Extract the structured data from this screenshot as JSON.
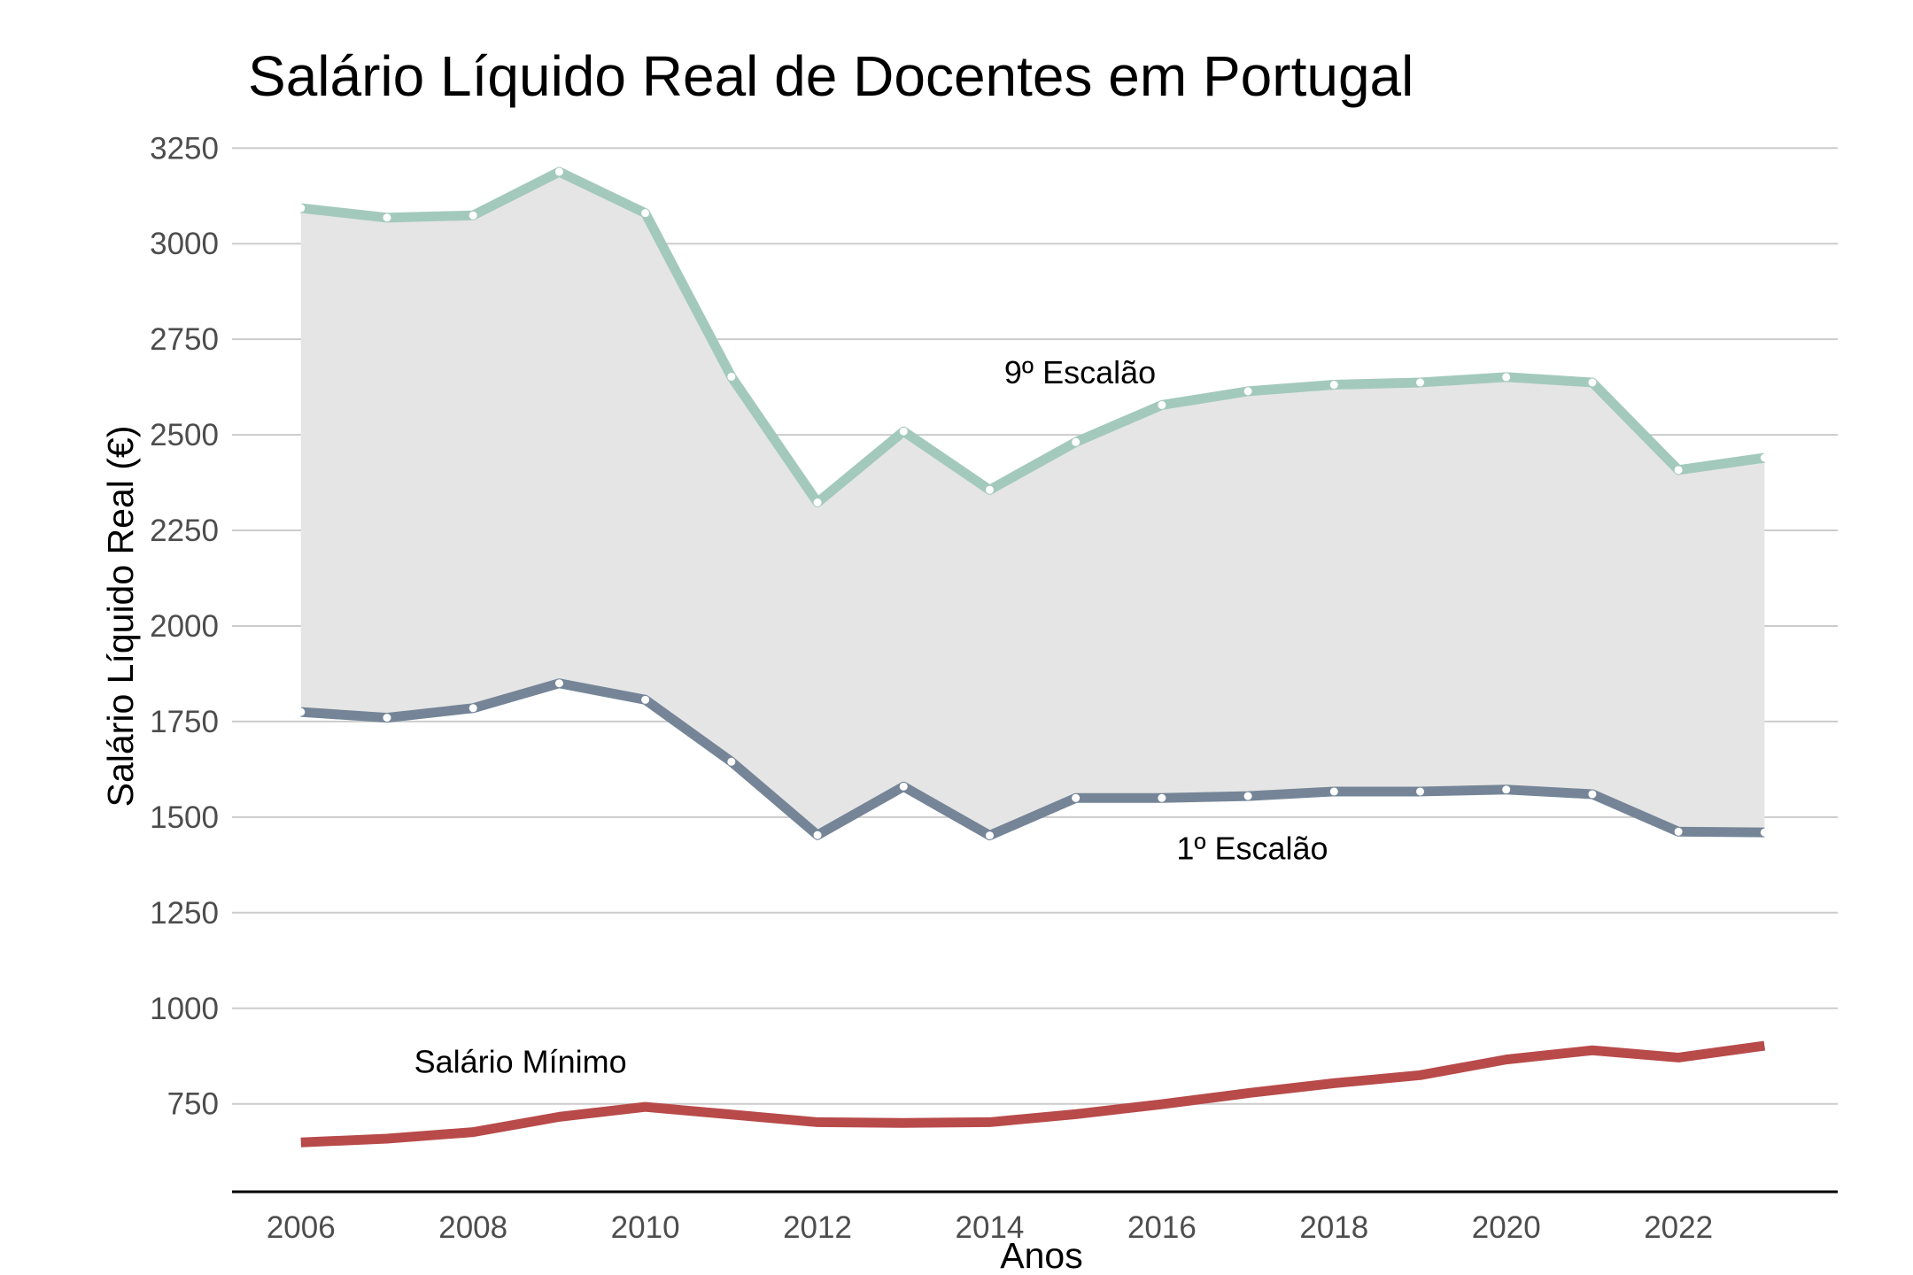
{
  "chart_data": {
    "type": "line",
    "title": "Salário Líquido Real de Docentes em Portugal",
    "xlabel": "Anos",
    "ylabel": "Salário Líquido Real (€)",
    "x": [
      2006,
      2007,
      2008,
      2009,
      2010,
      2011,
      2012,
      2013,
      2014,
      2015,
      2016,
      2017,
      2018,
      2019,
      2020,
      2021,
      2022,
      2023
    ],
    "x_ticks": [
      "2006",
      "2008",
      "2010",
      "2012",
      "2014",
      "2016",
      "2018",
      "2020",
      "2022"
    ],
    "y_ticks": [
      "750",
      "1000",
      "1250",
      "1500",
      "1750",
      "2000",
      "2250",
      "2500",
      "2750",
      "3000",
      "3250"
    ],
    "ylim": [
      520,
      3290
    ],
    "xlim": [
      2005.2,
      2023.85
    ],
    "grid": true,
    "band_fill": "#e5e5e5",
    "series": [
      {
        "name": "9º Escalão",
        "color": "#a3c9bd",
        "markers": true,
        "values": [
          3093,
          3068,
          3074,
          3188,
          3080,
          2652,
          2323,
          2509,
          2356,
          2481,
          2578,
          2614,
          2631,
          2637,
          2651,
          2637,
          2408,
          2440
        ]
      },
      {
        "name": "1º Escalão",
        "color": "#758597",
        "markers": true,
        "values": [
          1775,
          1760,
          1785,
          1850,
          1807,
          1645,
          1453,
          1580,
          1452,
          1550,
          1550,
          1555,
          1567,
          1567,
          1572,
          1560,
          1462,
          1460
        ]
      },
      {
        "name": "Salário Mínimo",
        "color": "#b84a4a",
        "markers": false,
        "values": [
          649,
          659,
          676,
          716,
          742,
          722,
          702,
          700,
          702,
          723,
          749,
          778,
          804,
          825,
          866,
          890,
          871,
          902
        ]
      }
    ],
    "annotations": [
      {
        "text": "9º Escalão",
        "x": 2015.05,
        "y": 2635
      },
      {
        "text": "1º Escalão",
        "x": 2017.05,
        "y": 1390
      },
      {
        "text": "Salário Mínimo",
        "x": 2008.55,
        "y": 832
      }
    ]
  }
}
